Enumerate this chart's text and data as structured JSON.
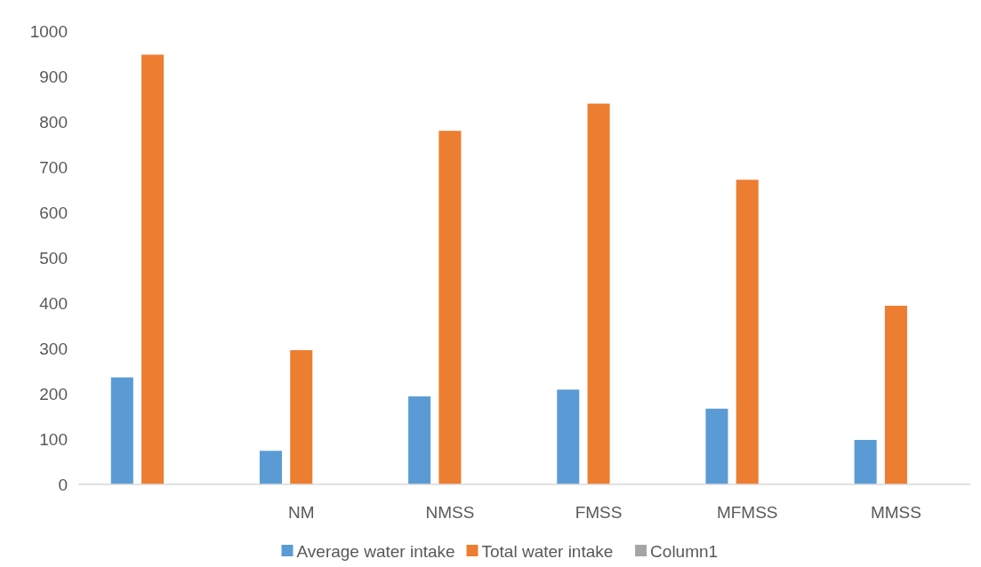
{
  "chart_data": {
    "type": "bar",
    "categories": [
      null,
      "NM",
      "NMSS",
      "FMSS",
      "MFMSS",
      "MMSS"
    ],
    "series": [
      {
        "name": "Average water intake",
        "color": "#5b9bd5",
        "values": [
          236,
          74,
          194,
          209,
          167,
          98
        ]
      },
      {
        "name": "Total water intake",
        "color": "#ed7d31",
        "values": [
          948,
          296,
          780,
          840,
          672,
          394
        ]
      },
      {
        "name": "Column1",
        "color": "#a5a5a5",
        "values": [
          null,
          null,
          null,
          null,
          null,
          null
        ]
      }
    ],
    "ylim": [
      0,
      1000
    ],
    "yticks": [
      0,
      100,
      200,
      300,
      400,
      500,
      600,
      700,
      800,
      900,
      1000
    ],
    "grid": false,
    "legend": "bottom"
  }
}
